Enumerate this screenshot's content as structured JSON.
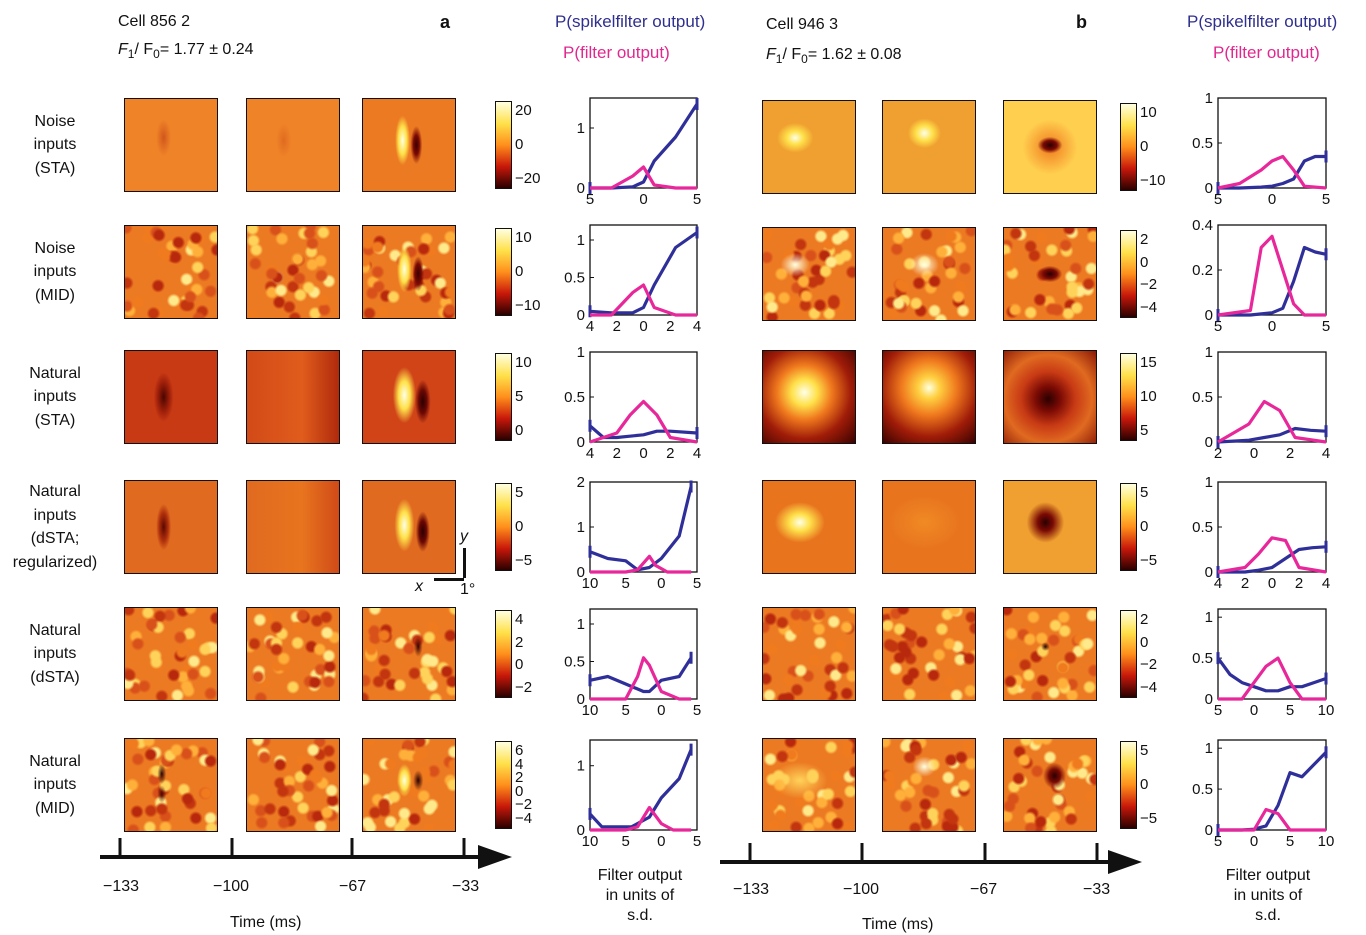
{
  "panel_a": {
    "letter": "a",
    "cell_label": "Cell 856 2",
    "ratio_F": "F",
    "ratio_sub1": "1",
    "ratio_slash": "/ F",
    "ratio_sub0": "0",
    "ratio_value": "= 1.77 ± 0.24",
    "legend_spike": "P(spikelfilter output)",
    "legend_filter": "P(filter output)"
  },
  "panel_b": {
    "letter": "b",
    "cell_label": "Cell 946 3",
    "ratio_F": "F",
    "ratio_sub1": "1",
    "ratio_slash": "/ F",
    "ratio_sub0": "0",
    "ratio_value": "= 1.62 ± 0.08",
    "legend_spike": "P(spikelfilter output)",
    "legend_filter": "P(filter output)"
  },
  "row_labels": [
    [
      "Noise",
      "inputs",
      "(STA)"
    ],
    [
      "Noise",
      "inputs",
      "(MID)"
    ],
    [
      "Natural",
      "inputs",
      "(STA)"
    ],
    [
      "Natural",
      "inputs",
      "(dSTA;",
      "regularized)"
    ],
    [
      "Natural",
      "inputs",
      "(dSTA)"
    ],
    [
      "Natural",
      "inputs",
      "(MID)"
    ]
  ],
  "colorbar_ticks_a": [
    [
      "20",
      "0",
      "−20"
    ],
    [
      "10",
      "0",
      "−10"
    ],
    [
      "10",
      "5",
      "0"
    ],
    [
      "5",
      "0",
      "−5"
    ],
    [
      "4",
      "2",
      "0",
      "−2"
    ],
    [
      "6",
      "4",
      "2",
      "0",
      "−2",
      "−4"
    ]
  ],
  "colorbar_ticks_b": [
    [
      "10",
      "0",
      "−10"
    ],
    [
      "2",
      "0",
      "−2",
      "−4"
    ],
    [
      "15",
      "10",
      "5"
    ],
    [
      "5",
      "0",
      "−5"
    ],
    [
      "2",
      "0",
      "−2",
      "−4"
    ],
    [
      "5",
      "0",
      "−5"
    ]
  ],
  "scale_bar": {
    "x": "x",
    "y": "y",
    "deg": "1°"
  },
  "time_axis": {
    "ticks": [
      "−133",
      "−100",
      "−67",
      "−33"
    ],
    "label": "Time (ms)"
  },
  "filter_axis_label": [
    "Filter output",
    "in units of",
    "s.d."
  ],
  "colors": {
    "spike": "#2f2f9a",
    "filter": "#e8289a"
  },
  "chart_data": [
    {
      "type": "line",
      "panel": "a",
      "row": 1,
      "xlim": [
        -5,
        5
      ],
      "ylim": [
        0,
        1.5
      ],
      "yticks": [
        "0",
        "1"
      ],
      "xticks": [
        "5",
        "0",
        "5"
      ],
      "series": [
        {
          "x": [
            -5,
            -3,
            -1,
            0,
            1,
            3,
            5
          ],
          "values": [
            0,
            0,
            0.02,
            0.1,
            0.45,
            0.85,
            1.4
          ]
        },
        {
          "x": [
            -5,
            -3,
            -1,
            0,
            1,
            3,
            5
          ],
          "values": [
            0,
            0,
            0.2,
            0.35,
            0.05,
            0,
            0
          ]
        }
      ]
    },
    {
      "type": "line",
      "panel": "a",
      "row": 2,
      "xlim": [
        -5,
        5
      ],
      "ylim": [
        0,
        1.2
      ],
      "yticks": [
        "0",
        "0.5",
        "1"
      ],
      "xticks": [
        "4",
        "2",
        "0",
        "2",
        "4"
      ],
      "series": [
        {
          "x": [
            -5,
            -3,
            -1,
            0,
            1,
            3,
            5
          ],
          "values": [
            0.05,
            0.03,
            0.03,
            0.1,
            0.4,
            0.9,
            1.1
          ]
        },
        {
          "x": [
            -5,
            -3,
            -1,
            0,
            1,
            3,
            5
          ],
          "values": [
            0,
            0,
            0.3,
            0.4,
            0.1,
            0,
            0
          ]
        }
      ]
    },
    {
      "type": "line",
      "panel": "a",
      "row": 3,
      "xlim": [
        -4,
        4
      ],
      "ylim": [
        0,
        1
      ],
      "yticks": [
        "0",
        "0.5",
        "1"
      ],
      "xticks": [
        "4",
        "2",
        "0",
        "2",
        "4"
      ],
      "series": [
        {
          "x": [
            -4,
            -3,
            -2,
            0,
            1,
            2,
            4
          ],
          "values": [
            0.18,
            0.05,
            0.05,
            0.08,
            0.12,
            0.12,
            0.1
          ]
        },
        {
          "x": [
            -4,
            -2,
            -1,
            0,
            1,
            2,
            4
          ],
          "values": [
            0,
            0.1,
            0.3,
            0.45,
            0.3,
            0.05,
            0
          ]
        }
      ]
    },
    {
      "type": "line",
      "panel": "a",
      "row": 4,
      "xlim": [
        -10,
        8
      ],
      "ylim": [
        0,
        2
      ],
      "yticks": [
        "0",
        "1",
        "2"
      ],
      "xticks": [
        "10",
        "5",
        "0",
        "5"
      ],
      "series": [
        {
          "x": [
            -10,
            -7,
            -4,
            -2,
            0,
            2,
            5,
            7
          ],
          "values": [
            0.45,
            0.3,
            0.25,
            0.05,
            0.1,
            0.3,
            0.8,
            1.9
          ]
        },
        {
          "x": [
            -10,
            -4,
            -2,
            0,
            1,
            3,
            7
          ],
          "values": [
            0,
            0,
            0.05,
            0.35,
            0.15,
            0,
            0
          ]
        }
      ]
    },
    {
      "type": "line",
      "panel": "a",
      "row": 5,
      "xlim": [
        -10,
        8
      ],
      "ylim": [
        0,
        1.2
      ],
      "yticks": [
        "0",
        "0.5",
        "1"
      ],
      "xticks": [
        "10",
        "5",
        "0",
        "5"
      ],
      "series": [
        {
          "x": [
            -10,
            -7,
            -4,
            -1,
            0,
            2,
            5,
            7
          ],
          "values": [
            0.25,
            0.3,
            0.2,
            0.1,
            0.1,
            0.25,
            0.3,
            0.55
          ]
        },
        {
          "x": [
            -10,
            -4,
            -2,
            -1,
            0,
            2,
            5,
            7
          ],
          "values": [
            0,
            0,
            0.3,
            0.55,
            0.45,
            0.1,
            0,
            0
          ]
        }
      ]
    },
    {
      "type": "line",
      "panel": "a",
      "row": 6,
      "xlim": [
        -10,
        8
      ],
      "ylim": [
        0,
        1.4
      ],
      "yticks": [
        "0",
        "1"
      ],
      "xticks": [
        "10",
        "5",
        "0",
        "5"
      ],
      "series": [
        {
          "x": [
            -10,
            -8,
            -5,
            -3,
            0,
            2,
            5,
            7
          ],
          "values": [
            0.25,
            0.05,
            0.05,
            0.05,
            0.2,
            0.5,
            0.8,
            1.25
          ]
        },
        {
          "x": [
            -10,
            -4,
            -2,
            0,
            2,
            4,
            7
          ],
          "values": [
            0,
            0,
            0.05,
            0.35,
            0.1,
            0,
            0
          ]
        }
      ]
    },
    {
      "type": "line",
      "panel": "b",
      "row": 1,
      "xlim": [
        -5,
        5
      ],
      "ylim": [
        0,
        1
      ],
      "yticks": [
        "0",
        "0.5",
        "1"
      ],
      "xticks": [
        "5",
        "0",
        "5"
      ],
      "series": [
        {
          "x": [
            -5,
            -3,
            -1,
            0,
            1,
            2,
            3,
            4,
            5
          ],
          "values": [
            0,
            0,
            0.01,
            0.02,
            0.05,
            0.1,
            0.3,
            0.35,
            0.35
          ]
        },
        {
          "x": [
            -5,
            -3,
            -1,
            0,
            1,
            2,
            3,
            5
          ],
          "values": [
            0,
            0.05,
            0.2,
            0.3,
            0.35,
            0.2,
            0.02,
            0
          ]
        }
      ]
    },
    {
      "type": "line",
      "panel": "b",
      "row": 2,
      "xlim": [
        -5,
        5
      ],
      "ylim": [
        0,
        0.4
      ],
      "yticks": [
        "0",
        "0.2",
        "0.4"
      ],
      "xticks": [
        "5",
        "0",
        "5"
      ],
      "series": [
        {
          "x": [
            -5,
            -2,
            0,
            1,
            2,
            3,
            4,
            5
          ],
          "values": [
            0,
            0,
            0.01,
            0.03,
            0.15,
            0.3,
            0.28,
            0.27
          ]
        },
        {
          "x": [
            -5,
            -2,
            -1,
            0,
            1,
            2,
            3,
            5
          ],
          "values": [
            0,
            0.02,
            0.3,
            0.35,
            0.2,
            0.05,
            0,
            0
          ]
        }
      ]
    },
    {
      "type": "line",
      "panel": "b",
      "row": 3,
      "xlim": [
        -3,
        4
      ],
      "ylim": [
        0,
        1
      ],
      "yticks": [
        "0",
        "0.5",
        "1"
      ],
      "xticks": [
        "2",
        "0",
        "2",
        "4"
      ],
      "series": [
        {
          "x": [
            -3,
            -1,
            0,
            1,
            2,
            3,
            4
          ],
          "values": [
            0,
            0.02,
            0.05,
            0.08,
            0.15,
            0.13,
            0.12
          ]
        },
        {
          "x": [
            -3,
            -1,
            0,
            1,
            2,
            4
          ],
          "values": [
            0,
            0.2,
            0.45,
            0.35,
            0.05,
            0
          ]
        }
      ]
    },
    {
      "type": "line",
      "panel": "b",
      "row": 4,
      "xlim": [
        -4,
        4
      ],
      "ylim": [
        0,
        1
      ],
      "yticks": [
        "0",
        "0.5",
        "1"
      ],
      "xticks": [
        "4",
        "2",
        "0",
        "2",
        "4"
      ],
      "series": [
        {
          "x": [
            -4,
            -2,
            -1,
            0,
            1,
            2,
            3,
            4
          ],
          "values": [
            0,
            0,
            0.02,
            0.05,
            0.15,
            0.25,
            0.27,
            0.28
          ]
        },
        {
          "x": [
            -4,
            -2,
            -1,
            0,
            1,
            2,
            4
          ],
          "values": [
            0,
            0.05,
            0.2,
            0.38,
            0.35,
            0.05,
            0
          ]
        }
      ]
    },
    {
      "type": "line",
      "panel": "b",
      "row": 5,
      "xlim": [
        -8,
        10
      ],
      "ylim": [
        0,
        1.1
      ],
      "yticks": [
        "0",
        "0.5",
        "1"
      ],
      "xticks": [
        "5",
        "0",
        "5",
        "10"
      ],
      "series": [
        {
          "x": [
            -8,
            -6,
            -4,
            -2,
            0,
            2,
            4,
            6,
            8,
            10
          ],
          "values": [
            0.5,
            0.3,
            0.2,
            0.15,
            0.1,
            0.1,
            0.15,
            0.15,
            0.2,
            0.25
          ]
        },
        {
          "x": [
            -8,
            -4,
            -2,
            0,
            2,
            4,
            6,
            10
          ],
          "values": [
            0,
            0,
            0.2,
            0.4,
            0.5,
            0.2,
            0,
            0
          ]
        }
      ]
    },
    {
      "type": "line",
      "panel": "b",
      "row": 6,
      "xlim": [
        -8,
        10
      ],
      "ylim": [
        0,
        1.1
      ],
      "yticks": [
        "0",
        "0.5",
        "1"
      ],
      "xticks": [
        "5",
        "0",
        "5",
        "10"
      ],
      "series": [
        {
          "x": [
            -8,
            -4,
            -2,
            0,
            2,
            4,
            6,
            8,
            10
          ],
          "values": [
            0,
            0,
            0.01,
            0.05,
            0.3,
            0.7,
            0.65,
            0.8,
            0.95
          ]
        },
        {
          "x": [
            -8,
            -2,
            0,
            2,
            4,
            6,
            10
          ],
          "values": [
            0,
            0,
            0.25,
            0.2,
            0,
            0,
            0
          ]
        }
      ]
    }
  ]
}
